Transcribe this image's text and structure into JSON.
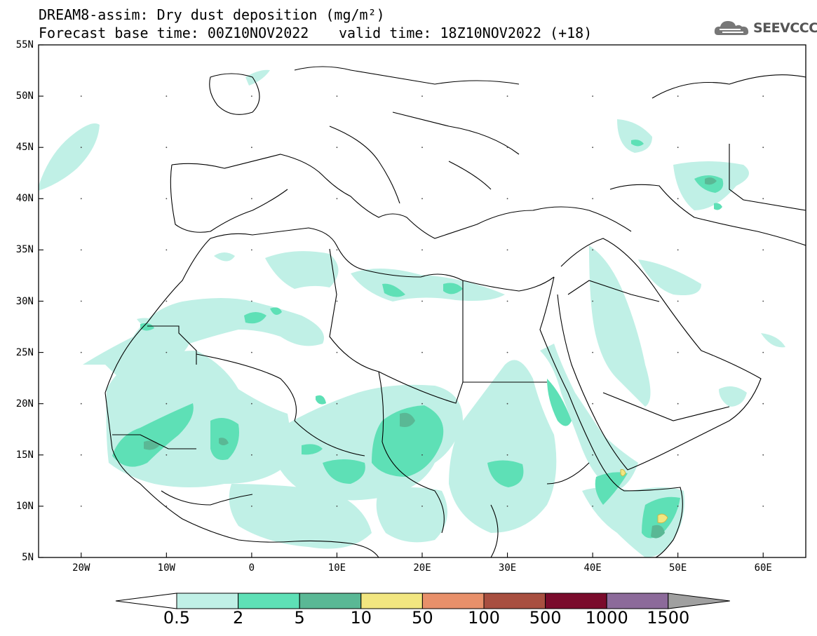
{
  "header": {
    "title_line1": "DREAM8-assim: Dry dust deposition (mg/m²)",
    "title_line2": "Forecast base time: 00Z10NOV2022",
    "valid_time": "valid time: 18Z10NOV2022 (+18)",
    "logo_text": "SEEVCCC"
  },
  "map": {
    "lat_range": [
      5,
      55
    ],
    "lon_range": [
      -25,
      65
    ],
    "lat_ticks": [
      "55N",
      "50N",
      "45N",
      "40N",
      "35N",
      "30N",
      "25N",
      "20N",
      "15N",
      "10N",
      "5N"
    ],
    "lon_ticks": [
      "20W",
      "10W",
      "0",
      "10E",
      "20E",
      "30E",
      "40E",
      "50E",
      "60E"
    ]
  },
  "legend": {
    "labels": [
      "0.5",
      "2",
      "5",
      "10",
      "50",
      "100",
      "500",
      "1000",
      "1500"
    ],
    "colors": [
      "#ffffff",
      "#c0f0e6",
      "#5ee0b6",
      "#5ab895",
      "#f2e680",
      "#e8906a",
      "#a84f40",
      "#7a0b2c",
      "#8c6a9a",
      "#a0a0a0"
    ]
  }
}
